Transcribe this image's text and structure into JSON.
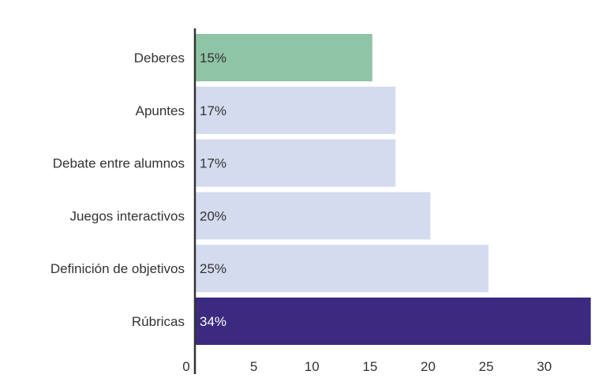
{
  "chart_data": {
    "type": "bar",
    "orientation": "horizontal",
    "title": "",
    "xlabel": "",
    "ylabel": "",
    "categories": [
      "Deberes",
      "Apuntes",
      "Debate entre alumnos",
      "Juegos interactivos",
      "Definición de objetivos",
      "Rúbricas"
    ],
    "values": [
      15.2,
      17.2,
      17.2,
      20.2,
      25.2,
      34.0
    ],
    "data_labels": [
      "15%",
      "17%",
      "17%",
      "20%",
      "25%",
      "34%"
    ],
    "bar_colors": [
      "#8fc4a6",
      "#d5dbee",
      "#d5dbee",
      "#d5dbee",
      "#d5dbee",
      "#3b2a80"
    ],
    "label_colors": [
      "#333333",
      "#333333",
      "#333333",
      "#333333",
      "#333333",
      "#ffffff"
    ],
    "xlim": [
      0,
      34.5
    ],
    "xticks": [
      0,
      5,
      10,
      15,
      20,
      25,
      30
    ],
    "grid": false,
    "legend": "none",
    "axis_color": "#333333",
    "text_color": "#333333"
  }
}
